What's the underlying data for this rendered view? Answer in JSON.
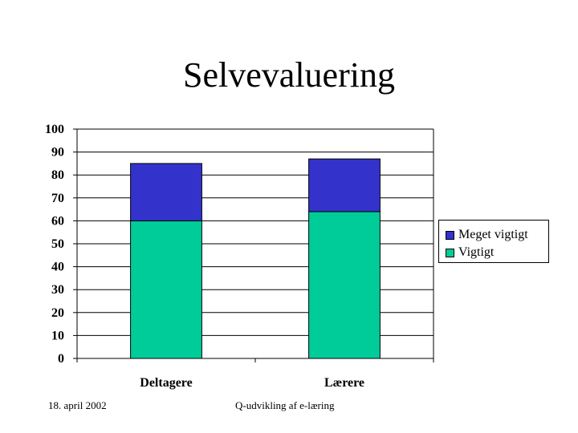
{
  "page": {
    "title": "Selvevaluering"
  },
  "footer": {
    "date": "18. april 2002",
    "center": "Q-udvikling af e-læring"
  },
  "chart_data": {
    "type": "bar",
    "stacked": true,
    "categories": [
      "Deltagere",
      "Lærere"
    ],
    "series": [
      {
        "name": "Vigtigt",
        "values": [
          60,
          64
        ],
        "color": "#00cc99"
      },
      {
        "name": "Meget vigtigt",
        "values": [
          25,
          23
        ],
        "color": "#3333cc"
      }
    ],
    "ylim": [
      0,
      100
    ],
    "yticks": [
      0,
      10,
      20,
      30,
      40,
      50,
      60,
      70,
      80,
      90,
      100
    ],
    "grid": true,
    "legend": {
      "position": "right",
      "items": [
        {
          "label": "Meget vigtigt",
          "color": "#3333cc"
        },
        {
          "label": "Vigtigt",
          "color": "#00cc99"
        }
      ]
    }
  }
}
